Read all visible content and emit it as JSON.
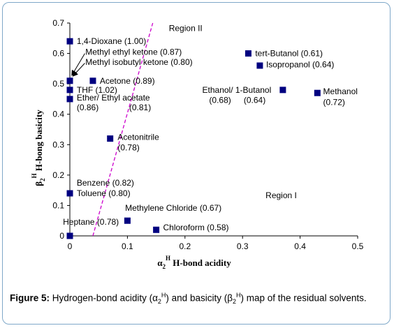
{
  "chart_data": {
    "type": "scatter",
    "xlim": [
      0,
      0.5
    ],
    "ylim": [
      0,
      0.7
    ],
    "x_ticks": [
      "0",
      "0.1",
      "0.2",
      "0.3",
      "0.4",
      "0.5"
    ],
    "y_ticks": [
      "0",
      "0.1",
      "0.2",
      "0.3",
      "0.4",
      "0.5",
      "0.6",
      "0.7"
    ],
    "xlabel": {
      "base": "α",
      "sub": "2",
      "sup": "H",
      "text": "H-bond acidity"
    },
    "ylabel": {
      "base": "β",
      "sub": "2",
      "sup": "H",
      "text": "H-bong basicity"
    },
    "marker_color": "#000080",
    "line_color": "#cc00cc",
    "points": [
      {
        "x": 0.0,
        "y": 0.64
      },
      {
        "x": 0.0,
        "y": 0.51
      },
      {
        "x": 0.04,
        "y": 0.51
      },
      {
        "x": 0.0,
        "y": 0.48
      },
      {
        "x": 0.0,
        "y": 0.45
      },
      {
        "x": 0.07,
        "y": 0.32
      },
      {
        "x": 0.0,
        "y": 0.14
      },
      {
        "x": 0.0,
        "y": 0.0
      },
      {
        "x": 0.1,
        "y": 0.05
      },
      {
        "x": 0.15,
        "y": 0.02
      },
      {
        "x": 0.31,
        "y": 0.6
      },
      {
        "x": 0.33,
        "y": 0.56
      },
      {
        "x": 0.37,
        "y": 0.48
      },
      {
        "x": 0.43,
        "y": 0.47
      }
    ],
    "labels": [
      {
        "text": "1,4-Dioxane (1.00)",
        "x": 0.012,
        "y": 0.64
      },
      {
        "text": "Methyl ethyl ketone (0.87)",
        "x": 0.027,
        "y": 0.605
      },
      {
        "text": "Methyl isobutyl ketone (0.80)",
        "x": 0.027,
        "y": 0.572
      },
      {
        "text": "Acetone (0.89)",
        "x": 0.052,
        "y": 0.51
      },
      {
        "text": "THF (1.02)",
        "x": 0.012,
        "y": 0.48
      },
      {
        "text": "Ether/ Ethyl acetate",
        "x": 0.012,
        "y": 0.455
      },
      {
        "text": "(0.86)",
        "x": 0.012,
        "y": 0.422
      },
      {
        "text": "(0.81)",
        "x": 0.103,
        "y": 0.422
      },
      {
        "text": "Acetonitrile",
        "x": 0.083,
        "y": 0.325
      },
      {
        "text": "(0.78)",
        "x": 0.083,
        "y": 0.29
      },
      {
        "text": "Benzene (0.82)",
        "x": 0.012,
        "y": 0.175
      },
      {
        "text": "Toluene (0.80)",
        "x": 0.012,
        "y": 0.14
      },
      {
        "text": "Methylene Chloride (0.67)",
        "x": 0.096,
        "y": 0.092
      },
      {
        "text": "Heptane (0.78)",
        "x": -0.012,
        "y": 0.046
      },
      {
        "text": "Chloroform (0.58)",
        "x": 0.162,
        "y": 0.027
      },
      {
        "text": "tert-Butanol (0.61)",
        "x": 0.322,
        "y": 0.6
      },
      {
        "text": "Isopropanol (0.64)",
        "x": 0.341,
        "y": 0.563
      },
      {
        "text": "Ethanol/ 1-Butanol",
        "x": 0.23,
        "y": 0.48
      },
      {
        "text": "(0.68)",
        "x": 0.242,
        "y": 0.446
      },
      {
        "text": "(0.64)",
        "x": 0.302,
        "y": 0.446
      },
      {
        "text": "Methanol",
        "x": 0.44,
        "y": 0.475
      },
      {
        "text": "(0.72)",
        "x": 0.44,
        "y": 0.44
      },
      {
        "text": "Region II",
        "x": 0.172,
        "y": 0.683
      },
      {
        "text": "Region I",
        "x": 0.34,
        "y": 0.133
      }
    ],
    "trend_line": {
      "x": [
        0.04,
        0.144
      ],
      "y": [
        0.0,
        0.7
      ]
    }
  },
  "caption": {
    "label": "Figure 5:",
    "text_1": " Hydrogen-bond acidity (α",
    "sub_1": "2",
    "sup_1": "H",
    "text_2": ") and basicity (β",
    "sub_2": "2",
    "sup_2": "H",
    "text_3": ") map of the residual solvents."
  }
}
